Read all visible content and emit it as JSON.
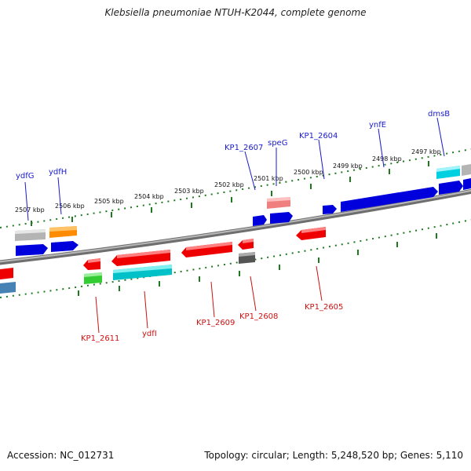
{
  "title": "Klebsiella pneumoniae NTUH-K2044, complete genome",
  "footer": {
    "accession": "Accession: NC_012731",
    "summary": "Topology: circular; Length: 5,248,520 bp; Genes: 5,110"
  },
  "colors": {
    "forward_label": "#1a1acc",
    "reverse_label": "#cc1111",
    "tick": "#1f7a1f",
    "backbone": "#8a8a8a"
  },
  "kbp_labels": [
    "2507 kbp",
    "2506 kbp",
    "2505 kbp",
    "2504 kbp",
    "2503 kbp",
    "2502 kbp",
    "2501 kbp",
    "2500 kbp",
    "2499 kbp",
    "2498 kbp",
    "2497 kbp"
  ],
  "forward_gene_labels": [
    "ydfG",
    "ydfH",
    "KP1_2607",
    "speG",
    "KP1_2604",
    "ynfE",
    "dmsB"
  ],
  "reverse_gene_labels": [
    "KP1_2611",
    "ydfI",
    "KP1_2609",
    "KP1_2608",
    "KP1_2605"
  ]
}
